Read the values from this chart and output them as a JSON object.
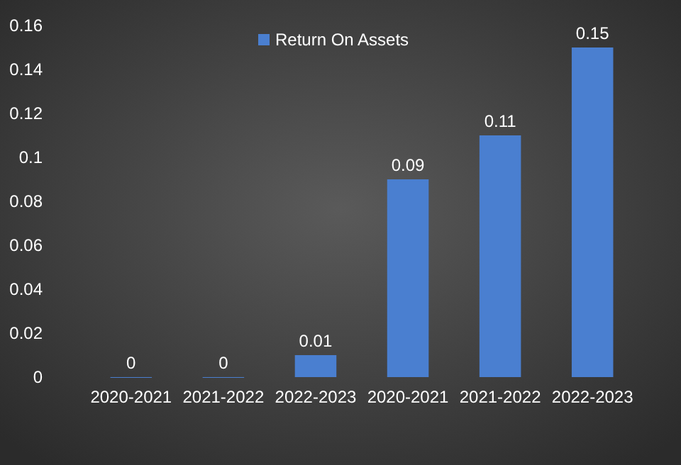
{
  "chart_data": {
    "type": "bar",
    "categories": [
      "2020-2021",
      "2021-2022",
      "2022-2023",
      "2020-2021",
      "2021-2022",
      "2022-2023"
    ],
    "series": [
      {
        "name": "Return On Assets",
        "color": "#4a7fd0",
        "values": [
          0,
          0,
          0.01,
          0.09,
          0.11,
          0.15
        ]
      }
    ],
    "ylim": [
      0,
      0.16
    ],
    "yticks": [
      0,
      0.02,
      0.04,
      0.06,
      0.08,
      0.1,
      0.12,
      0.14,
      0.16
    ],
    "data_labels": true,
    "legend": "top",
    "grid": false
  }
}
